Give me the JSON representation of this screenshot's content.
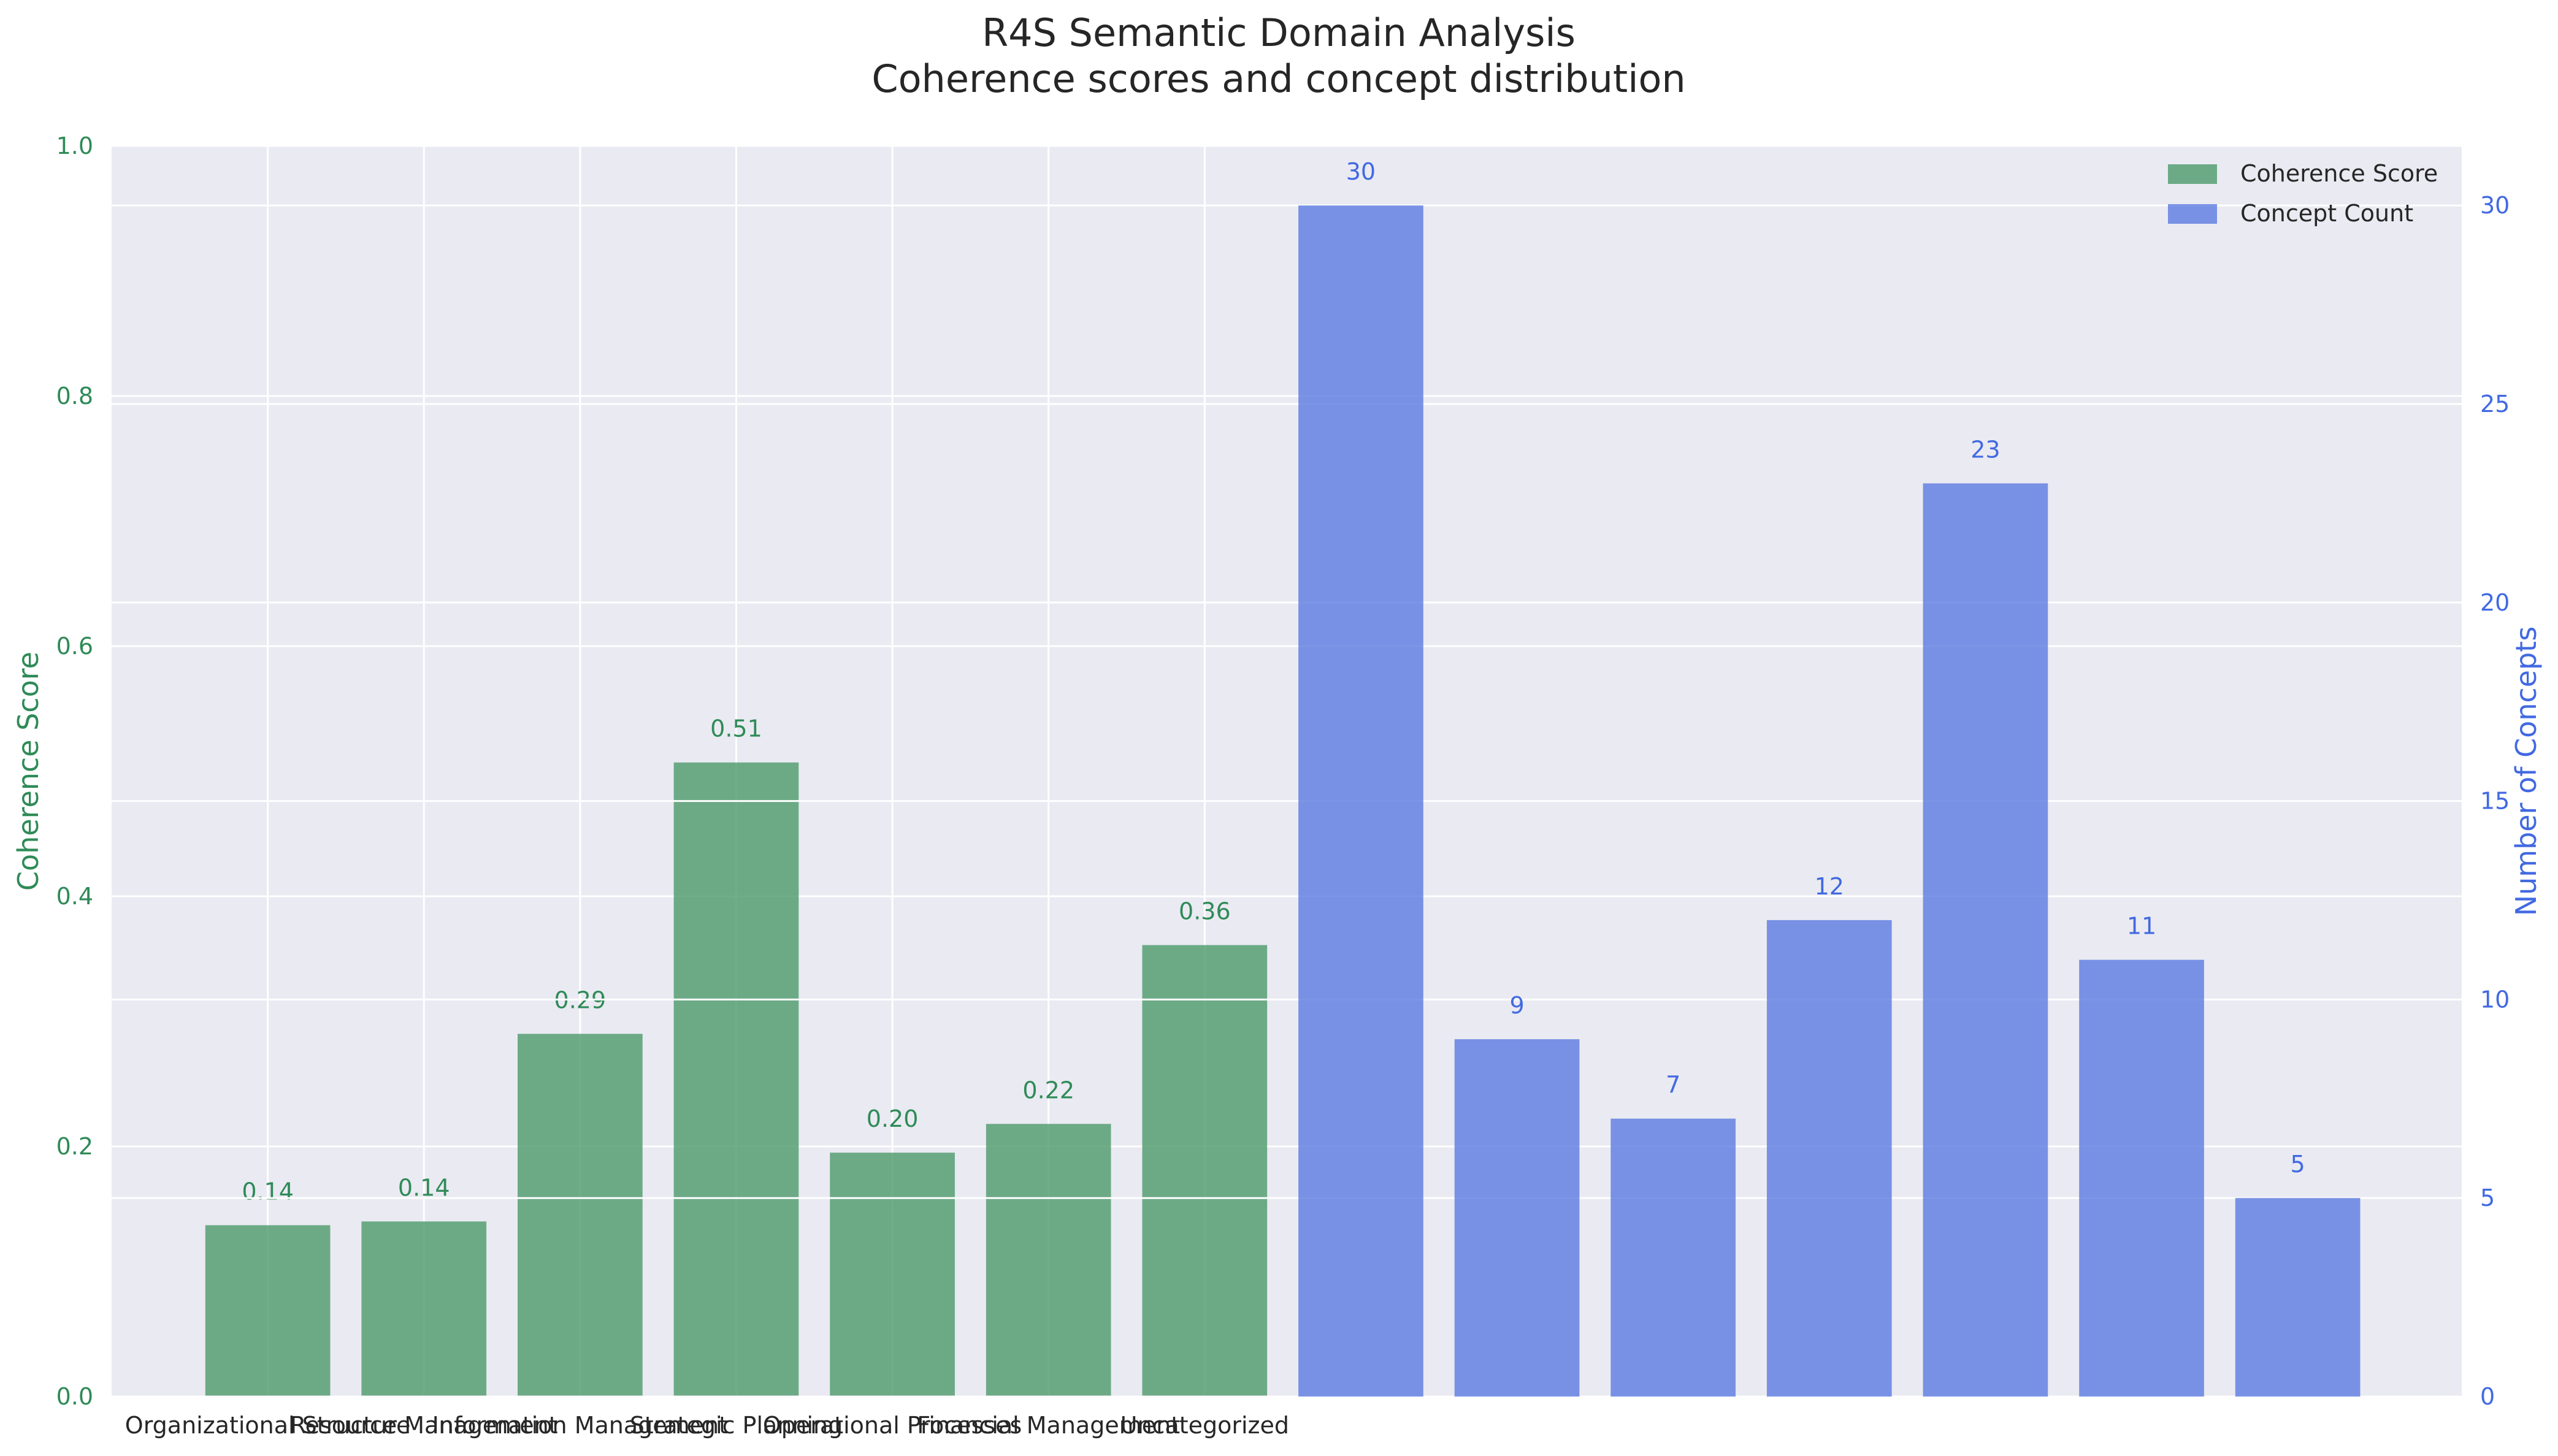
{
  "chart_data": {
    "type": "bar",
    "title": "R4S Semantic Domain Analysis",
    "subtitle": "Coherence scores and concept distribution",
    "categories": [
      "Organizational Structure",
      "Resource Management",
      "Information Management",
      "Strategic Planning",
      "Operational Processes",
      "Financial Management",
      "Uncategorized"
    ],
    "ylabel_left": "Coherence Score",
    "ylabel_right": "Number of Concepts",
    "ylim_left": [
      0,
      1.0
    ],
    "ylim_right": [
      0,
      31.5
    ],
    "yticks_left": [
      "0.0",
      "0.2",
      "0.4",
      "0.6",
      "0.8",
      "1.0"
    ],
    "yticks_right": [
      "0",
      "5",
      "10",
      "15",
      "20",
      "25",
      "30"
    ],
    "grid": true,
    "legend_position": "top-right",
    "series": [
      {
        "name": "Coherence Score",
        "axis": "left",
        "color": "#4c9a6a",
        "x": [
          0,
          1,
          2,
          3,
          4,
          5,
          6
        ],
        "values": [
          0.137,
          0.14,
          0.29,
          0.507,
          0.195,
          0.218,
          0.361
        ],
        "labels": [
          "0.14",
          "0.14",
          "0.29",
          "0.51",
          "0.20",
          "0.22",
          "0.36"
        ]
      },
      {
        "name": "Concept Count",
        "axis": "right",
        "color": "#5b7be0",
        "x": [
          7,
          8,
          9,
          10,
          11,
          12,
          13
        ],
        "values": [
          30,
          9,
          7,
          12,
          23,
          11,
          5
        ],
        "labels": [
          "30",
          "9",
          "7",
          "12",
          "23",
          "11",
          "5"
        ]
      }
    ],
    "colors": {
      "left_axis": "#2e8b57",
      "right_axis": "#4169e1",
      "plot_bg": "#eaeaf2",
      "grid": "#ffffff",
      "text": "#262626"
    }
  }
}
